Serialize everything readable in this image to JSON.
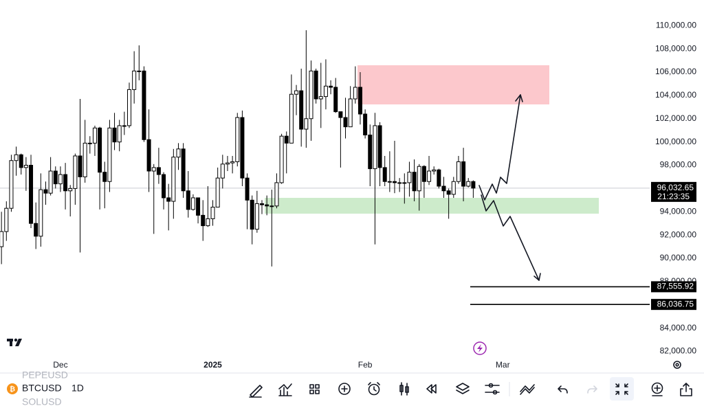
{
  "chart_data": {
    "type": "candlestick",
    "open": [
      91000,
      92300,
      94300,
      98400,
      98900,
      97800,
      98000,
      93000,
      91900,
      95900,
      95600,
      97500,
      96400,
      97200,
      95800,
      96000,
      98800,
      97000,
      99900,
      99900,
      101200,
      97400,
      96600,
      101200,
      100000,
      101400,
      101400,
      104500,
      106100,
      106100,
      100200,
      97500,
      97800,
      97200,
      95200,
      94900,
      98700,
      99400,
      95800,
      94200,
      95200,
      93700,
      92800,
      93400,
      94400,
      96900,
      98100,
      98200,
      98300,
      102100,
      96900,
      95000,
      92500,
      94700,
      94600,
      94500,
      94500,
      96500,
      100500,
      99900,
      104100,
      104400,
      101100,
      102000,
      106100,
      103700,
      103900,
      104800,
      104700,
      102600,
      102100,
      101300,
      103700,
      104700,
      102400,
      100600,
      97700,
      101400,
      97800,
      96600,
      96600,
      96500,
      96500,
      96500,
      97400,
      95800,
      97900,
      96600,
      97500,
      97600,
      96200,
      95800,
      95500,
      96600,
      98300,
      96200,
      96600
    ],
    "high": [
      94000,
      94900,
      98900,
      99600,
      99000,
      98700,
      98900,
      94800,
      97300,
      96600,
      98700,
      97900,
      97900,
      98200,
      96300,
      99000,
      103700,
      101900,
      100500,
      101400,
      101300,
      98300,
      101900,
      102500,
      101900,
      102600,
      105100,
      107800,
      108300,
      106500,
      102800,
      98100,
      99500,
      97400,
      96400,
      99400,
      99900,
      99900,
      97500,
      95500,
      95200,
      95000,
      96200,
      95000,
      97800,
      98900,
      98800,
      98800,
      102500,
      102700,
      97300,
      95400,
      95800,
      95000,
      95400,
      95900,
      97300,
      100700,
      100900,
      105800,
      104900,
      106300,
      109600,
      107000,
      106300,
      106800,
      107100,
      105300,
      105500,
      102600,
      103800,
      104800,
      106500,
      106000,
      102800,
      101500,
      102500,
      101700,
      98800,
      99200,
      100100,
      96900,
      97300,
      98300,
      98500,
      98100,
      98000,
      98800,
      97900,
      97700,
      97000,
      96000,
      97000,
      98800,
      99500,
      96900,
      96700
    ],
    "low": [
      89500,
      91500,
      94000,
      97100,
      97200,
      95800,
      92600,
      90800,
      91000,
      94600,
      95400,
      96000,
      95700,
      94200,
      93600,
      94600,
      90500,
      96500,
      99000,
      98800,
      94200,
      94300,
      95700,
      99300,
      99200,
      100600,
      101200,
      103300,
      105300,
      100000,
      95700,
      92100,
      96400,
      94200,
      92400,
      93400,
      97600,
      95200,
      93500,
      94100,
      93000,
      91500,
      92700,
      92800,
      94400,
      96000,
      97500,
      97300,
      97900,
      96200,
      92500,
      91200,
      92200,
      93800,
      93700,
      89300,
      94300,
      96400,
      97300,
      99900,
      102300,
      99600,
      99500,
      100100,
      103300,
      101200,
      102800,
      104100,
      102500,
      97800,
      100300,
      101300,
      103300,
      101500,
      100300,
      96200,
      91200,
      96200,
      96200,
      95700,
      95600,
      95700,
      94700,
      95300,
      94900,
      94100,
      95200,
      96300,
      97200,
      96000,
      95200,
      93400,
      95200,
      96400,
      94900,
      96100,
      95200
    ],
    "close": [
      92300,
      94300,
      98400,
      98900,
      97800,
      98000,
      93000,
      91900,
      95900,
      95600,
      97500,
      96400,
      97200,
      95800,
      96000,
      98800,
      97000,
      99900,
      99900,
      101200,
      97400,
      96600,
      101200,
      100000,
      101400,
      101400,
      104500,
      106100,
      106100,
      100200,
      97500,
      97800,
      97200,
      95200,
      94900,
      98700,
      99400,
      95800,
      94200,
      95200,
      93700,
      92800,
      93400,
      94400,
      96900,
      98100,
      98200,
      98300,
      102100,
      96900,
      95000,
      92500,
      94700,
      94600,
      94500,
      94500,
      96500,
      100500,
      99900,
      104100,
      104400,
      101100,
      102000,
      106100,
      103700,
      103900,
      104800,
      104700,
      102600,
      102100,
      101300,
      103700,
      104700,
      102400,
      100600,
      97700,
      101400,
      97800,
      96600,
      96600,
      96500,
      96500,
      96500,
      97400,
      95800,
      97900,
      96600,
      97500,
      97600,
      96200,
      95800,
      95500,
      96600,
      98300,
      96200,
      96600,
      96032.65
    ],
    "up_color": "#ffffff",
    "down_color": "#000000",
    "xlim": [
      -0.3,
      131.9
    ],
    "xticks": [
      {
        "value": 12,
        "label": "Dec"
      },
      {
        "value": 43,
        "label": "2025"
      },
      {
        "value": 74,
        "label": "Feb"
      },
      {
        "value": 102,
        "label": "Mar"
      }
    ],
    "ylim": [
      81500,
      112200
    ],
    "yticks": [
      {
        "value": 110000,
        "label": "110,000.00"
      },
      {
        "value": 108000,
        "label": "108,000.00"
      },
      {
        "value": 106000,
        "label": "106,000.00"
      },
      {
        "value": 104000,
        "label": "104,000.00"
      },
      {
        "value": 102000,
        "label": "102,000.00"
      },
      {
        "value": 100000,
        "label": "100,000.00"
      },
      {
        "value": 98000,
        "label": "98,000.00"
      },
      {
        "value": 94000,
        "label": "94,000.00"
      },
      {
        "value": 92000,
        "label": "92,000.00"
      },
      {
        "value": 90000,
        "label": "90,000.00"
      },
      {
        "value": 88000,
        "label": "88,000.00"
      },
      {
        "value": 84000,
        "label": "84,000.00"
      },
      {
        "value": 82000,
        "label": "82,000.00"
      }
    ],
    "last_price": {
      "value": 96032.65,
      "label": "96,032.65"
    },
    "countdown": "21:23:35",
    "levels": [
      {
        "value": 87555.92,
        "label": "87,555.92"
      },
      {
        "value": 86036.75,
        "label": "86,036.75"
      }
    ]
  },
  "toolbar": {
    "symbol": "BTCUSD",
    "interval": "1D",
    "watchlist": [
      "PEPEUSD",
      "SOLUSD"
    ]
  }
}
